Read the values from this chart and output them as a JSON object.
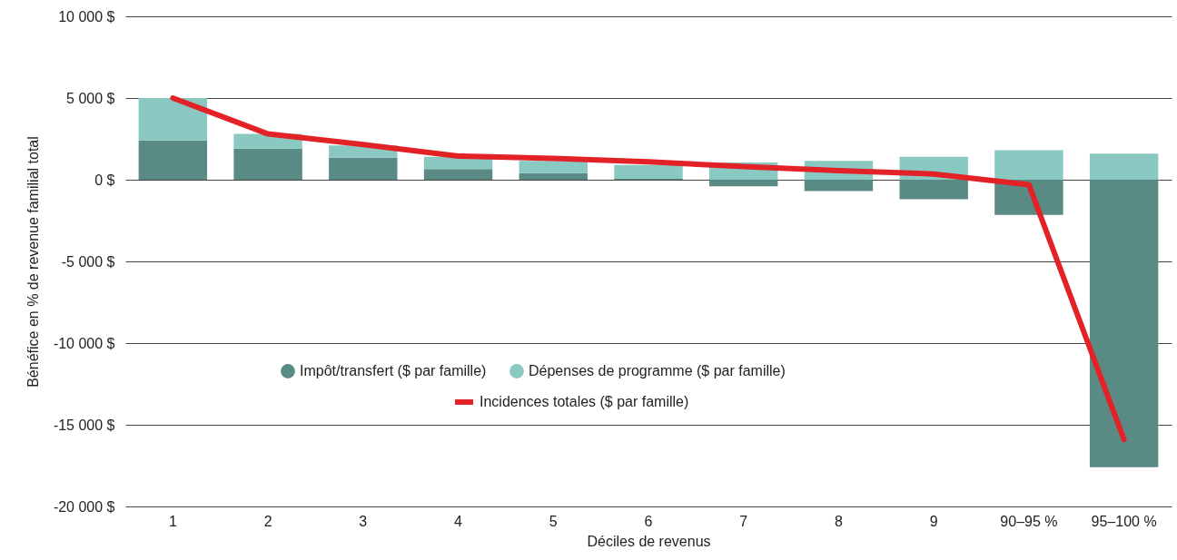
{
  "chart_data": {
    "type": "bar",
    "stacked": true,
    "xlabel": "Déciles de revenus",
    "ylabel": "Bénéfice en % de revenue familial total",
    "categories": [
      "1",
      "2",
      "3",
      "4",
      "5",
      "6",
      "7",
      "8",
      "9",
      "90–95 %",
      "95–100 %"
    ],
    "series": [
      {
        "name": "Impôt/transfert ($ par famille)",
        "color": "#5a8a84",
        "values": [
          2400,
          1900,
          1350,
          650,
          400,
          50,
          -400,
          -700,
          -1200,
          -2150,
          -17600
        ]
      },
      {
        "name": "Dépenses de programme ($ par famille)",
        "color": "#8ac8c2",
        "values": [
          2600,
          900,
          750,
          750,
          750,
          850,
          1050,
          1150,
          1400,
          1800,
          1600
        ]
      },
      {
        "name": "Incidences totales ($ par famille)",
        "type": "line",
        "color": "#e32228",
        "values": [
          5000,
          2800,
          2150,
          1450,
          1300,
          1100,
          800,
          550,
          350,
          -300,
          -15900
        ]
      }
    ],
    "ylim": [
      -20000,
      10000
    ],
    "yticks": [
      {
        "value": -20000,
        "label": "-20 000 $"
      },
      {
        "value": -15000,
        "label": "-15 000 $"
      },
      {
        "value": -10000,
        "label": "-10 000 $"
      },
      {
        "value": -5000,
        "label": "-5 000 $"
      },
      {
        "value": 0,
        "label": "0 $"
      },
      {
        "value": 5000,
        "label": "5 000 $"
      },
      {
        "value": 10000,
        "label": "10 000 $"
      }
    ],
    "grid": "y",
    "legend": "bottom",
    "marker": "none",
    "line_style": "solid"
  }
}
